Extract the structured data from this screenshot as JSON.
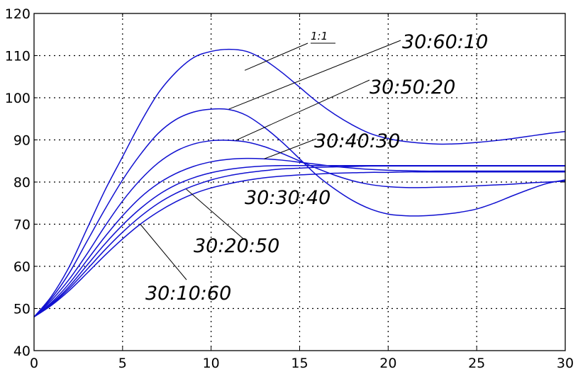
{
  "chart_data": {
    "type": "line",
    "title": "",
    "xlabel": "",
    "ylabel": "",
    "xlim": [
      0,
      30
    ],
    "ylim": [
      40,
      120
    ],
    "xticks": [
      0,
      5,
      10,
      15,
      20,
      25,
      30
    ],
    "yticks": [
      40,
      50,
      60,
      70,
      80,
      90,
      100,
      110,
      120
    ],
    "xtick_labels": [
      "0",
      "5",
      "10",
      "15",
      "20",
      "25",
      "30"
    ],
    "ytick_labels": [
      "40",
      "50",
      "60",
      "70",
      "80",
      "90",
      "100",
      "110",
      "120"
    ],
    "grid": true,
    "line_color": "#1010d0",
    "series": [
      {
        "name": "1:1",
        "x": [
          0,
          1,
          2,
          3,
          4,
          5,
          6,
          7,
          8,
          9,
          10,
          11,
          12,
          13,
          14,
          15,
          16,
          17,
          18,
          19,
          20,
          21,
          22,
          23,
          24,
          25,
          26,
          27,
          28,
          29,
          30
        ],
        "y": [
          48,
          53,
          60,
          69,
          78,
          86,
          94,
          101,
          106,
          109.5,
          111,
          111.5,
          111,
          109,
          106,
          102.5,
          99,
          96,
          93.5,
          91.5,
          90.3,
          89.6,
          89.2,
          89,
          89.1,
          89.4,
          89.8,
          90.3,
          90.9,
          91.5,
          92
        ]
      },
      {
        "name": "30:60:10",
        "x": [
          0,
          1,
          2,
          3,
          4,
          5,
          6,
          7,
          8,
          9,
          10,
          11,
          12,
          13,
          14,
          15,
          16,
          17,
          18,
          19,
          20,
          21,
          22,
          23,
          24,
          25,
          26,
          27,
          28,
          29,
          30
        ],
        "y": [
          48,
          52.5,
          58.5,
          66,
          73.5,
          80.5,
          86.5,
          91.5,
          94.8,
          96.6,
          97.3,
          97.2,
          95.8,
          93,
          89.5,
          85.5,
          81.5,
          78.3,
          75.6,
          73.6,
          72.4,
          72,
          72,
          72.3,
          72.8,
          73.6,
          75,
          76.7,
          78.3,
          79.7,
          80.5
        ]
      },
      {
        "name": "30:50:20",
        "x": [
          0,
          1,
          2,
          3,
          4,
          5,
          6,
          7,
          8,
          9,
          10,
          11,
          12,
          13,
          14,
          15,
          16,
          17,
          18,
          19,
          20,
          21,
          22,
          23,
          24,
          25,
          26,
          27,
          28,
          29,
          30
        ],
        "y": [
          48,
          52,
          57,
          63,
          69.5,
          75.5,
          80.5,
          84.5,
          87.3,
          89,
          89.8,
          89.9,
          89.5,
          88.4,
          86.8,
          85,
          83.2,
          81.6,
          80.3,
          79.4,
          78.9,
          78.7,
          78.7,
          78.8,
          78.9,
          79.1,
          79.3,
          79.5,
          79.8,
          80,
          80.2
        ]
      },
      {
        "name": "30:40:30",
        "x": [
          0,
          1,
          2,
          3,
          4,
          5,
          6,
          7,
          8,
          9,
          10,
          11,
          12,
          13,
          14,
          15,
          16,
          17,
          18,
          19,
          20,
          21,
          22,
          23,
          24,
          25,
          26,
          27,
          28,
          29,
          30
        ],
        "y": [
          48,
          51.5,
          56,
          61.5,
          67,
          72,
          76.3,
          79.6,
          82,
          83.7,
          84.8,
          85.4,
          85.6,
          85.5,
          85.2,
          84.7,
          84.2,
          83.7,
          83.3,
          83,
          82.8,
          82.7,
          82.6,
          82.6,
          82.6,
          82.6,
          82.6,
          82.6,
          82.6,
          82.6,
          82.6
        ]
      },
      {
        "name": "30:30:40",
        "x": [
          0,
          1,
          2,
          3,
          4,
          5,
          6,
          7,
          8,
          9,
          10,
          11,
          12,
          13,
          14,
          15,
          16,
          17,
          18,
          19,
          20,
          21,
          22,
          23,
          24,
          25,
          26,
          27,
          28,
          29,
          30
        ],
        "y": [
          48,
          51.2,
          55.3,
          60.3,
          65.3,
          69.8,
          73.7,
          76.9,
          79.3,
          81,
          82.2,
          83,
          83.5,
          83.8,
          83.9,
          83.9,
          83.9,
          83.9,
          83.9,
          83.9,
          83.9,
          83.9,
          83.9,
          83.9,
          83.9,
          83.9,
          83.9,
          83.9,
          83.9,
          83.9,
          83.9
        ]
      },
      {
        "name": "30:20:50",
        "x": [
          0,
          1,
          2,
          3,
          4,
          5,
          6,
          7,
          8,
          9,
          10,
          11,
          12,
          13,
          14,
          15,
          16,
          17,
          18,
          19,
          20,
          21,
          22,
          23,
          24,
          25,
          26,
          27,
          28,
          29,
          30
        ],
        "y": [
          48,
          51,
          54.8,
          59.3,
          63.9,
          68.1,
          71.8,
          74.9,
          77.3,
          79.1,
          80.5,
          81.5,
          82.2,
          82.7,
          83.1,
          83.3,
          83.5,
          83.6,
          83.7,
          83.8,
          83.8,
          83.8,
          83.8,
          83.8,
          83.8,
          83.8,
          83.8,
          83.8,
          83.8,
          83.8,
          83.8
        ]
      },
      {
        "name": "30:10:60",
        "x": [
          0,
          1,
          2,
          3,
          4,
          5,
          6,
          7,
          8,
          9,
          10,
          11,
          12,
          13,
          14,
          15,
          16,
          17,
          18,
          19,
          20,
          21,
          22,
          23,
          24,
          25,
          26,
          27,
          28,
          29,
          30
        ],
        "y": [
          48,
          50.8,
          54.3,
          58.4,
          62.6,
          66.5,
          70,
          72.9,
          75.3,
          77.2,
          78.6,
          79.6,
          80.4,
          81,
          81.4,
          81.7,
          81.9,
          82.1,
          82.2,
          82.3,
          82.3,
          82.4,
          82.4,
          82.4,
          82.4,
          82.4,
          82.4,
          82.4,
          82.4,
          82.4,
          82.4
        ]
      }
    ],
    "annotations": [
      {
        "text": "1:1",
        "target_series": "1:1",
        "anchor": [
          13.9,
          113
        ],
        "point": [
          11.9,
          106.5
        ]
      },
      {
        "text": "30:60:10",
        "target_series": "30:60:10",
        "anchor": [
          20.8,
          114
        ],
        "point": [
          11,
          97.3
        ]
      },
      {
        "text": "30:50:20",
        "target_series": "30:50:20",
        "anchor": [
          19,
          103.5
        ],
        "point": [
          11.4,
          89.9
        ]
      },
      {
        "text": "30:40:30",
        "target_series": "30:40:30",
        "anchor": [
          18,
          90.5
        ],
        "point": [
          13,
          85.5
        ]
      },
      {
        "text": "30:30:40",
        "target_series": "30:30:40",
        "anchor": [
          11.8,
          83.8
        ],
        "point": [
          11.8,
          83.8
        ]
      },
      {
        "text": "30:20:50",
        "target_series": "30:20:50",
        "anchor": [
          16.5,
          62
        ],
        "point": [
          8.6,
          78.3
        ]
      },
      {
        "text": "30:10:60",
        "target_series": "30:10:60",
        "anchor": [
          11.3,
          55.5
        ],
        "point": [
          6,
          70
        ]
      }
    ]
  }
}
